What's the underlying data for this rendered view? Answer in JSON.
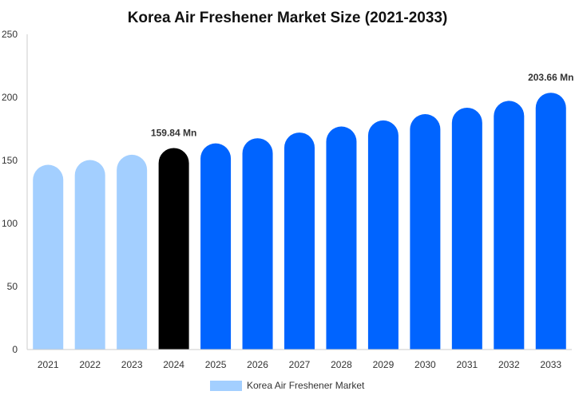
{
  "chart_data": {
    "type": "bar",
    "title": "Korea Air Freshener Market Size (2021-2033)",
    "xlabel": "",
    "ylabel": "",
    "categories": [
      "2021",
      "2022",
      "2023",
      "2024",
      "2025",
      "2026",
      "2027",
      "2028",
      "2029",
      "2030",
      "2031",
      "2032",
      "2033"
    ],
    "series": [
      {
        "name": "Korea Air Freshener Market",
        "values": [
          146.5,
          150.3,
          154.5,
          159.84,
          163.5,
          167.6,
          172.1,
          176.9,
          181.7,
          186.7,
          191.8,
          197.2,
          203.66
        ]
      }
    ],
    "ylim": [
      0,
      250
    ],
    "yticks": [
      0,
      50,
      100,
      150,
      200,
      250
    ],
    "grid": false,
    "legend": "bottom",
    "data_labels": [
      {
        "category": "2024",
        "text": "159.84 Mn"
      },
      {
        "category": "2033",
        "text": "203.66 Mn"
      }
    ],
    "colors": {
      "historical": "#a3cfff",
      "current": "#000000",
      "forecast": "#0064ff",
      "axis": "#cccccc"
    },
    "color_groups": [
      "historical",
      "historical",
      "historical",
      "current",
      "forecast",
      "forecast",
      "forecast",
      "forecast",
      "forecast",
      "forecast",
      "forecast",
      "forecast",
      "forecast"
    ]
  }
}
